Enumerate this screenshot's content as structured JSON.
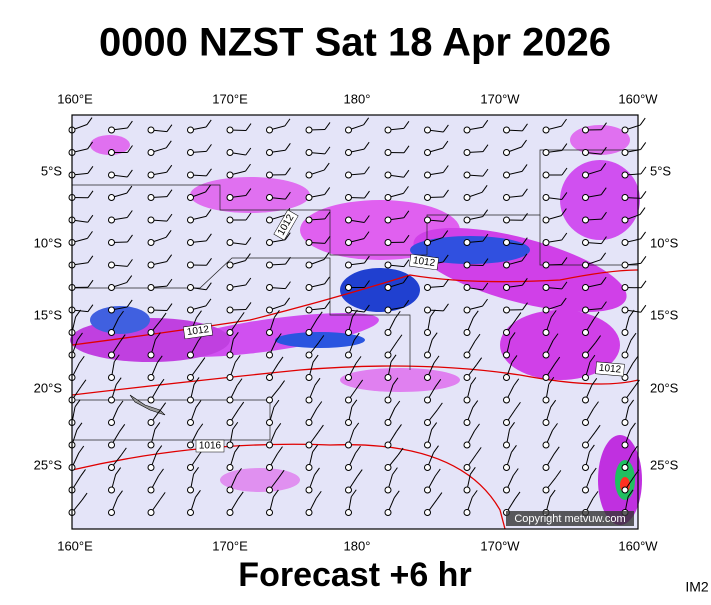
{
  "title": "0000 NZST Sat 18 Apr 2026",
  "map": {
    "lon_labels": [
      "160°E",
      "170°E",
      "180°",
      "170°W",
      "160°W"
    ],
    "lat_labels": [
      "5°S",
      "10°S",
      "15°S",
      "20°S",
      "25°S"
    ],
    "isobar_labels": [
      "1012",
      "1012",
      "1012",
      "1012",
      "1016"
    ],
    "copyright": "Copyright metvuw.com"
  },
  "footer": {
    "caption": "Forecast +6 hr",
    "id": "IM2"
  }
}
